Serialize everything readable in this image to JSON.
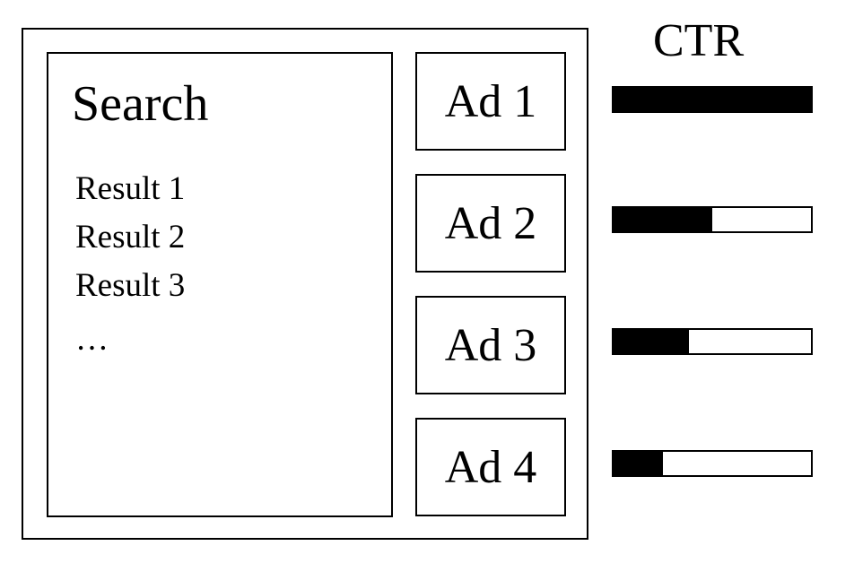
{
  "search": {
    "title": "Search",
    "results": [
      "Result 1",
      "Result 2",
      "Result 3",
      "…"
    ]
  },
  "ads": [
    {
      "label": "Ad 1",
      "ctr_fraction": 1.0
    },
    {
      "label": "Ad 2",
      "ctr_fraction": 0.5
    },
    {
      "label": "Ad 3",
      "ctr_fraction": 0.38
    },
    {
      "label": "Ad 4",
      "ctr_fraction": 0.25
    }
  ],
  "ctr": {
    "label": "CTR"
  },
  "colors": {
    "ink": "#000000",
    "background": "#ffffff"
  }
}
